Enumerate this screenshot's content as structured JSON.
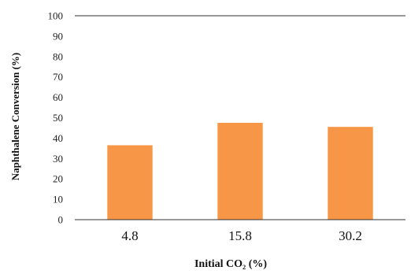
{
  "chart_data": {
    "type": "bar",
    "categories": [
      "4.8",
      "15.8",
      "30.2"
    ],
    "values": [
      36.5,
      47.5,
      45.5
    ],
    "ylabel": "Naphthalene Conversion (%)",
    "xlabel": "Initial CO₂ (%)",
    "ylim": [
      0,
      100
    ],
    "yticks": [
      "0",
      "10",
      "20",
      "30",
      "40",
      "50",
      "60",
      "70",
      "80",
      "90",
      "100"
    ],
    "grid": false,
    "bar_color": "#F79646"
  }
}
